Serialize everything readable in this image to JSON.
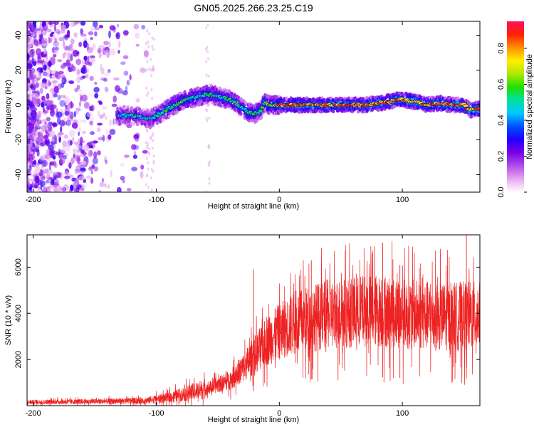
{
  "title": "GN05.2025.266.23.25.C19",
  "chart_data": [
    {
      "type": "heatmap",
      "xlabel": "Height of straight line (km)",
      "ylabel": "Frequency (Hz)",
      "xlim": [
        -205,
        163
      ],
      "ylim": [
        -50,
        48
      ],
      "xticks": [
        -200,
        -100,
        0,
        100
      ],
      "yticks": [
        -40,
        -20,
        0,
        20,
        40
      ],
      "colorbar": {
        "label": "Normalized spectral amplitude",
        "range": [
          0,
          0.95
        ],
        "ticks": [
          "0.0",
          "0.2",
          "0.4",
          "0.6",
          "0.8"
        ],
        "colormap": [
          "#ffffff",
          "#e7a7ee",
          "#b050ea",
          "#7a00e6",
          "#2000ff",
          "#0050ff",
          "#00c8ff",
          "#00e0a0",
          "#20e000",
          "#b0e800",
          "#ffee00",
          "#ff9000",
          "#ff2000",
          "#ff1060"
        ]
      },
      "ridge": {
        "x": [
          -130,
          -120,
          -110,
          -105,
          -100,
          -95,
          -90,
          -85,
          -80,
          -75,
          -70,
          -65,
          -60,
          -55,
          -50,
          -45,
          -40,
          -35,
          -30,
          -25,
          -20,
          -15,
          -12,
          -8,
          -5,
          0,
          10,
          20,
          30,
          40,
          50,
          60,
          70,
          80,
          90,
          95,
          100,
          110,
          120,
          130,
          140,
          150,
          155,
          163
        ],
        "y": [
          -6,
          -6,
          -7,
          -8,
          -6,
          -4,
          -2,
          0,
          2,
          3,
          4,
          5,
          6,
          6,
          5,
          4,
          3,
          1,
          -2,
          -4,
          -5,
          -3,
          2,
          0,
          0,
          0,
          0,
          0,
          0,
          0,
          0,
          0,
          0,
          1,
          2,
          3,
          3,
          2,
          0,
          1,
          0,
          0,
          -3,
          -2
        ]
      }
    },
    {
      "type": "line",
      "xlabel": "Height of straight line (km)",
      "ylabel": "SNR (10 * v/v)",
      "xlim": [
        -205,
        163
      ],
      "ylim": [
        0,
        7400
      ],
      "xticks": [
        -200,
        -100,
        0,
        100
      ],
      "yticks": [
        2000,
        4000,
        6000
      ],
      "color": "#ee2222",
      "envelope": {
        "x": [
          -205,
          -150,
          -110,
          -90,
          -70,
          -55,
          -40,
          -30,
          -20,
          -10,
          0,
          10,
          20,
          30,
          40,
          50,
          60,
          70,
          80,
          90,
          100,
          110,
          120,
          130,
          140,
          150,
          163
        ],
        "y": [
          150,
          180,
          220,
          350,
          600,
          800,
          1100,
          1600,
          2200,
          2800,
          3200,
          3500,
          3700,
          3850,
          3950,
          4000,
          4050,
          4100,
          4100,
          4050,
          4000,
          3950,
          3900,
          3850,
          3850,
          3900,
          3900
        ]
      },
      "peaks": [
        {
          "x": -21,
          "y": 5900
        },
        {
          "x": 84,
          "y": 7050
        },
        {
          "x": 152,
          "y": 7400
        },
        {
          "x": 26,
          "y": 6300
        },
        {
          "x": 98,
          "y": 6100
        }
      ]
    }
  ]
}
